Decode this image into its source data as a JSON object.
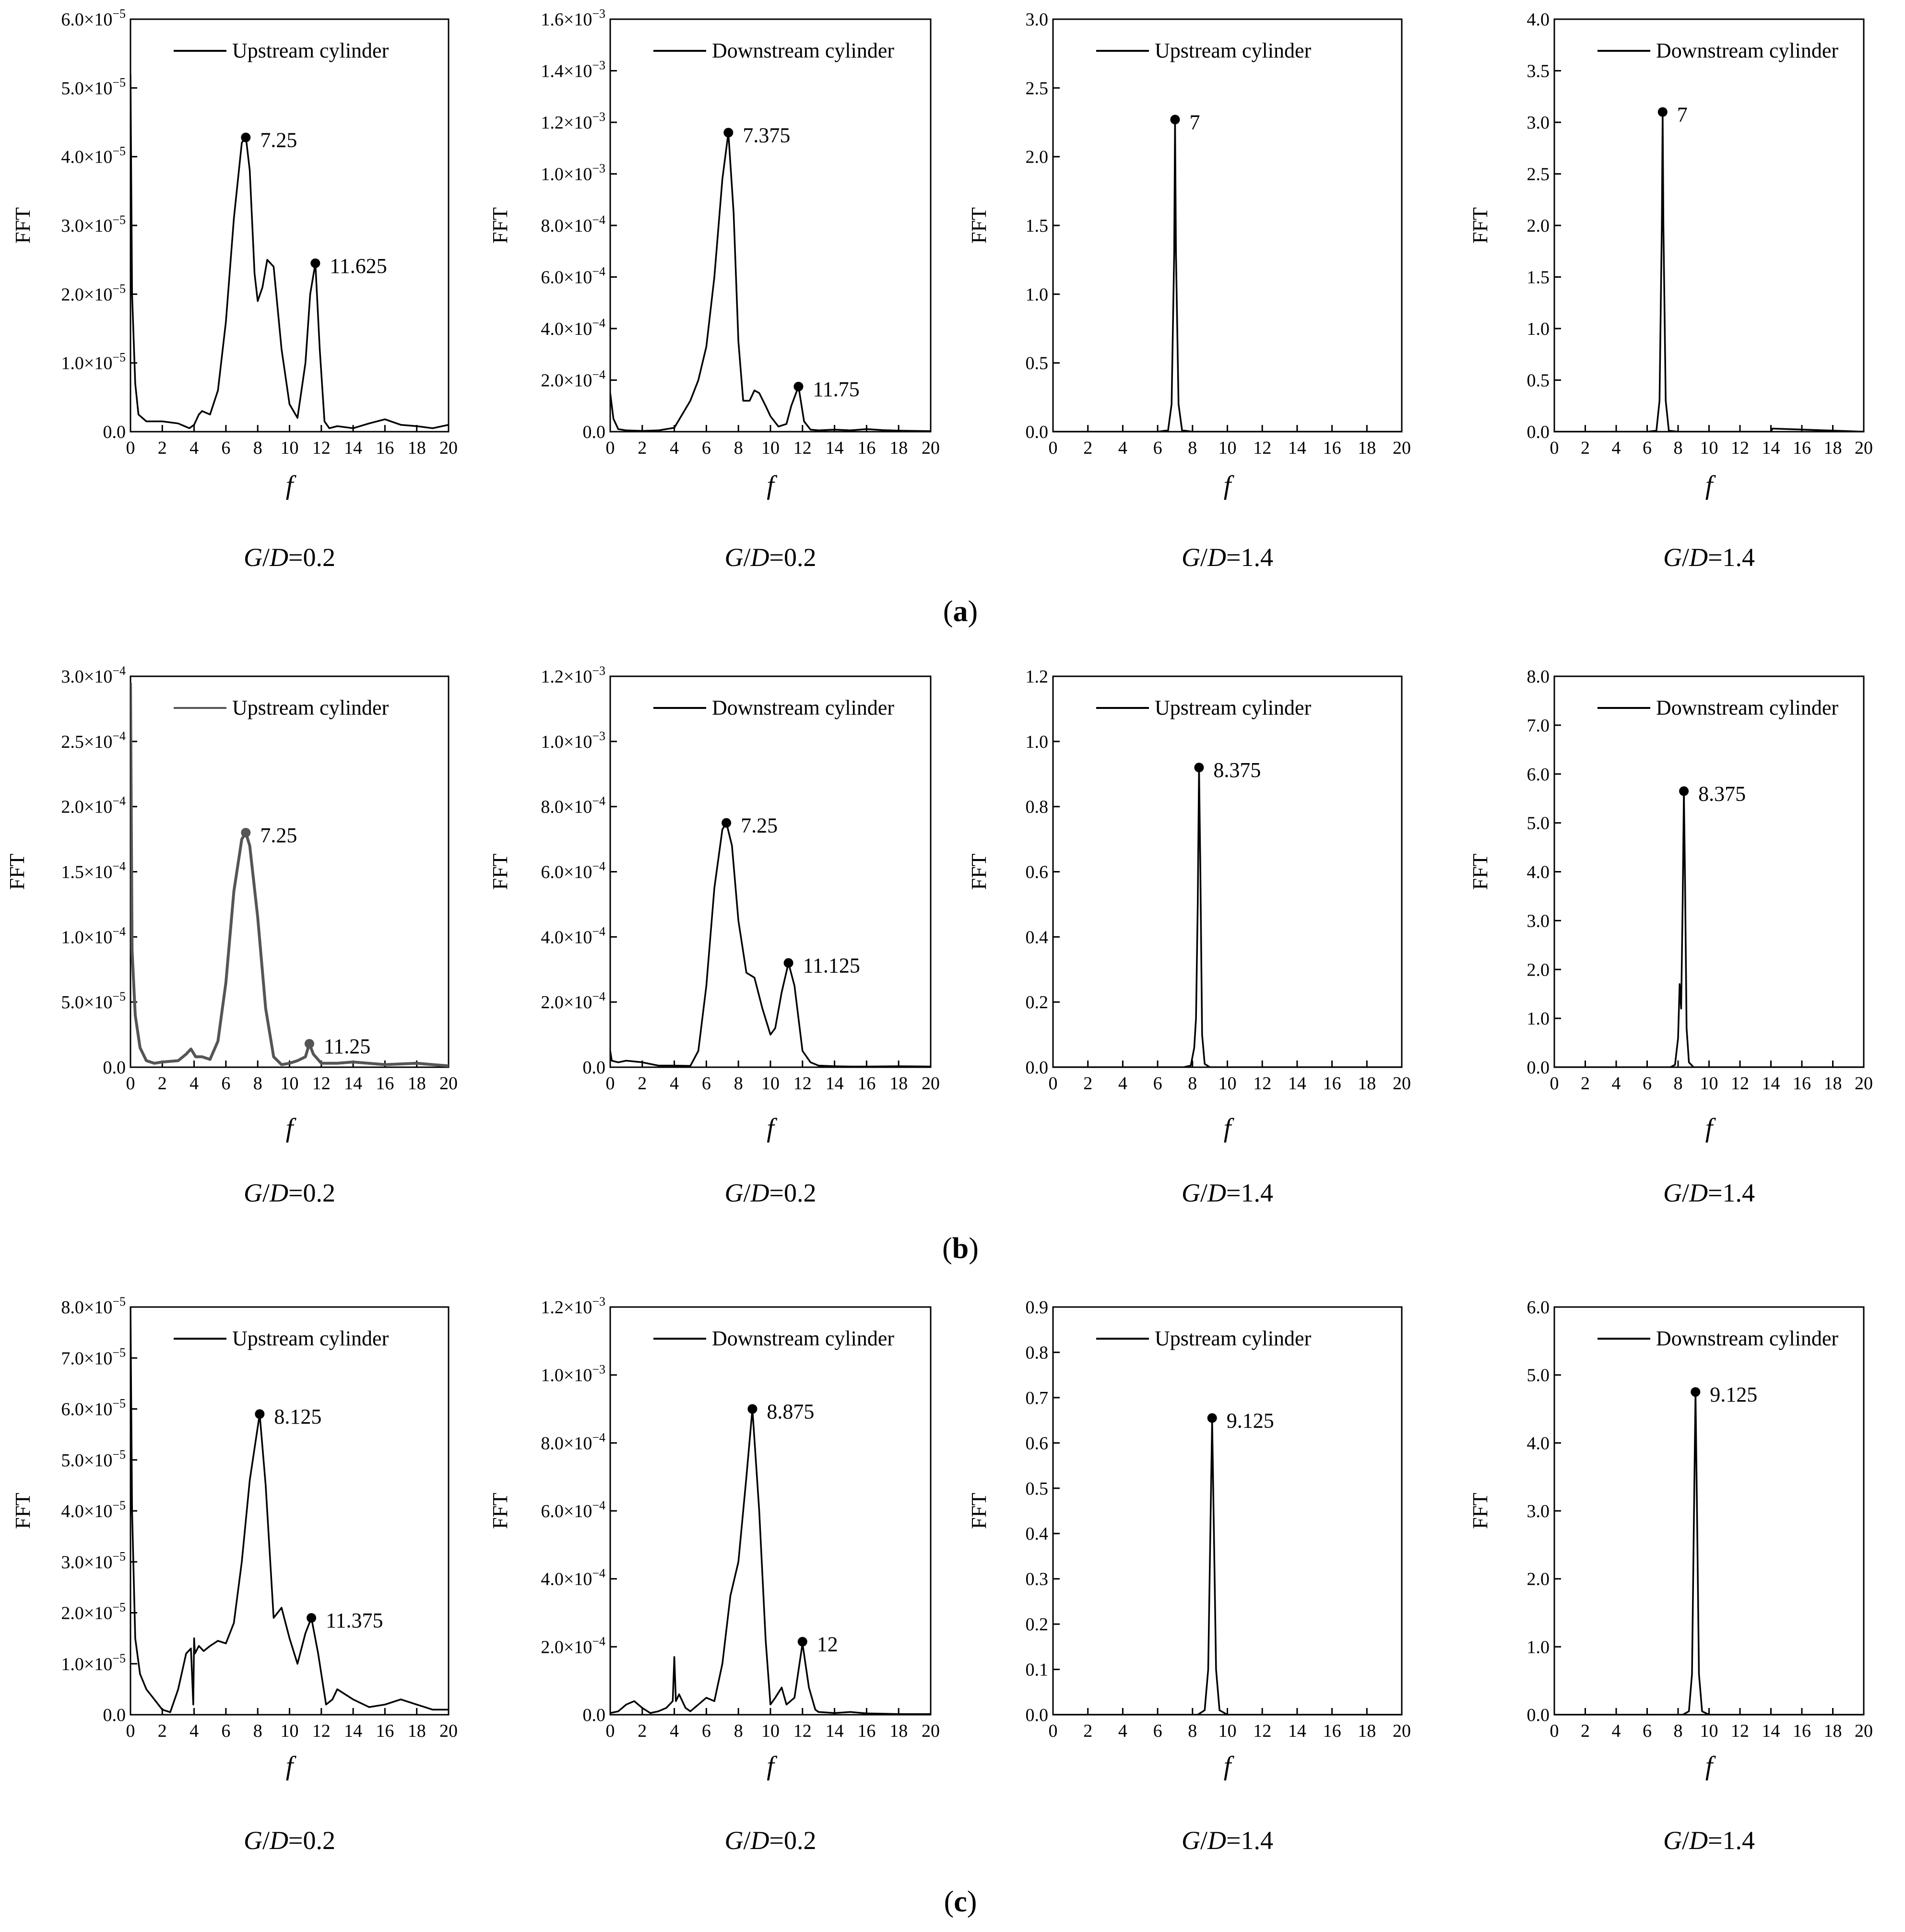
{
  "panel_labels": [
    "(a)",
    "(b)",
    "(c)"
  ],
  "chart_data": [
    {
      "type": "line",
      "title": "",
      "xlabel": "f",
      "ylabel": "FFT",
      "caption": "G/D=0.2",
      "legend": "Upstream cylinder",
      "exp": -5,
      "xlim": [
        0,
        20
      ],
      "ylim": [
        0,
        6e-05
      ],
      "xticks": [
        0,
        2,
        4,
        6,
        8,
        10,
        12,
        14,
        16,
        18,
        20
      ],
      "yticks": [
        "0.0",
        "1.0×10^-5",
        "2.0×10^-5",
        "3.0×10^-5",
        "4.0×10^-5",
        "5.0×10^-5",
        "6.0×10^-5"
      ],
      "x": [
        0,
        0.1,
        0.3,
        0.5,
        1,
        2,
        3,
        3.7,
        4,
        4.3,
        4.5,
        5,
        5.5,
        6,
        6.5,
        7,
        7.25,
        7.5,
        7.8,
        8,
        8.3,
        8.6,
        9,
        9.5,
        10,
        10.5,
        11,
        11.3,
        11.625,
        11.9,
        12.2,
        12.5,
        13,
        14,
        15,
        16,
        17,
        18,
        19,
        20
      ],
      "y": [
        5.2e-05,
        2e-05,
        7e-06,
        2.5e-06,
        1.5e-06,
        1.5e-06,
        1.2e-06,
        5e-07,
        1e-06,
        2.5e-06,
        3e-06,
        2.5e-06,
        6e-06,
        1.6e-05,
        3.1e-05,
        4.2e-05,
        4.3e-05,
        3.8e-05,
        2.3e-05,
        1.9e-05,
        2.1e-05,
        2.5e-05,
        2.4e-05,
        1.2e-05,
        4e-06,
        2e-06,
        1e-05,
        2e-05,
        2.45e-05,
        1.2e-05,
        1.5e-06,
        5e-07,
        8e-07,
        5e-07,
        1.2e-06,
        1.8e-06,
        1e-06,
        8e-07,
        5e-07,
        1e-06
      ],
      "peaks": [
        {
          "x": 7.25,
          "y": 4.28e-05,
          "label": "7.25"
        },
        {
          "x": 11.625,
          "y": 2.45e-05,
          "label": "11.625"
        }
      ]
    },
    {
      "type": "line",
      "title": "",
      "xlabel": "f",
      "ylabel": "FFT",
      "caption": "G/D=0.2",
      "legend": "Downstream cylinder",
      "exp": -3,
      "xlim": [
        0,
        20
      ],
      "ylim": [
        0,
        0.0016
      ],
      "xticks": [
        0,
        2,
        4,
        6,
        8,
        10,
        12,
        14,
        16,
        18,
        20
      ],
      "yticks": [
        "0.0",
        "2.0×10^-4",
        "4.0×10^-4",
        "6.0×10^-4",
        "8.0×10^-4",
        "1.0×10^-3",
        "1.2×10^-3",
        "1.4×10^-3",
        "1.6×10^-3"
      ],
      "x": [
        0,
        0.2,
        0.5,
        1,
        2,
        3,
        4,
        5,
        5.5,
        6,
        6.5,
        7,
        7.375,
        7.7,
        8,
        8.3,
        8.7,
        9,
        9.3,
        9.7,
        10,
        10.5,
        11,
        11.3,
        11.75,
        12.1,
        12.5,
        13,
        14,
        15,
        16,
        17,
        18,
        19,
        20
      ],
      "y": [
        0.00015,
        5e-05,
        1e-05,
        5e-06,
        3e-06,
        5e-06,
        1.5e-05,
        0.00012,
        0.0002,
        0.00033,
        0.0006,
        0.00098,
        0.00116,
        0.00085,
        0.00035,
        0.00012,
        0.00012,
        0.00016,
        0.00015,
        0.0001,
        6e-05,
        2e-05,
        3e-05,
        0.0001,
        0.000175,
        4e-05,
        8e-06,
        5e-06,
        8e-06,
        5e-06,
        1e-05,
        6e-06,
        4e-06,
        3e-06,
        2e-06
      ],
      "peaks": [
        {
          "x": 7.375,
          "y": 0.00116,
          "label": "7.375"
        },
        {
          "x": 11.75,
          "y": 0.000175,
          "label": "11.75"
        }
      ]
    },
    {
      "type": "line",
      "title": "",
      "xlabel": "f",
      "ylabel": "FFT",
      "caption": "G/D=1.4",
      "legend": "Upstream cylinder",
      "exp": 0,
      "xlim": [
        0,
        20
      ],
      "ylim": [
        0,
        3.0
      ],
      "xticks": [
        0,
        2,
        4,
        6,
        8,
        10,
        12,
        14,
        16,
        18,
        20
      ],
      "yticks": [
        "0.0",
        "0.5",
        "1.0",
        "1.5",
        "2.0",
        "2.5",
        "3.0"
      ],
      "x": [
        0,
        6,
        6.6,
        6.8,
        6.95,
        7,
        7.05,
        7.2,
        7.4,
        8,
        20
      ],
      "y": [
        0,
        0,
        0.01,
        0.2,
        1.3,
        2.27,
        1.3,
        0.2,
        0.01,
        0,
        0
      ],
      "peaks": [
        {
          "x": 7,
          "y": 2.27,
          "label": "7"
        }
      ]
    },
    {
      "type": "line",
      "title": "",
      "xlabel": "f",
      "ylabel": "FFT",
      "caption": "G/D=1.4",
      "legend": "Downstream cylinder",
      "exp": 0,
      "xlim": [
        0,
        20
      ],
      "ylim": [
        0,
        4.0
      ],
      "xticks": [
        0,
        2,
        4,
        6,
        8,
        10,
        12,
        14,
        16,
        18,
        20
      ],
      "yticks": [
        "0.0",
        "0.5",
        "1.0",
        "1.5",
        "2.0",
        "2.5",
        "3.0",
        "3.5",
        "4.0"
      ],
      "x": [
        0,
        6,
        6.6,
        6.8,
        6.95,
        7,
        7.05,
        7.2,
        7.4,
        8,
        14,
        14.1,
        20
      ],
      "y": [
        0,
        0,
        0.01,
        0.3,
        2.0,
        3.1,
        2.0,
        0.3,
        0.01,
        0,
        0,
        0.03,
        0
      ],
      "peaks": [
        {
          "x": 7,
          "y": 3.1,
          "label": "7"
        }
      ]
    },
    {
      "type": "line",
      "title": "",
      "xlabel": "f",
      "ylabel": "FFT",
      "caption": "G/D=0.2",
      "legend": "Upstream cylinder",
      "exp": -4,
      "xlim": [
        0,
        20
      ],
      "ylim": [
        0,
        0.0003
      ],
      "xticks": [
        0,
        2,
        4,
        6,
        8,
        10,
        12,
        14,
        16,
        18,
        20
      ],
      "yticks": [
        "0.0",
        "5.0×10^-5",
        "1.0×10^-4",
        "1.5×10^-4",
        "2.0×10^-4",
        "2.5×10^-4",
        "3.0×10^-4"
      ],
      "x": [
        0,
        0.1,
        0.3,
        0.6,
        1,
        1.5,
        2,
        3,
        3.5,
        3.8,
        4.1,
        4.5,
        5,
        5.5,
        6,
        6.5,
        7,
        7.25,
        7.5,
        8,
        8.5,
        9,
        9.5,
        10,
        10.5,
        11,
        11.25,
        11.5,
        12,
        13,
        14,
        16,
        18,
        20
      ],
      "y": [
        0.000295,
        9e-05,
        4e-05,
        1.5e-05,
        5e-06,
        3e-06,
        4e-06,
        5e-06,
        1e-05,
        1.4e-05,
        8e-06,
        8e-06,
        6e-06,
        2e-05,
        6.5e-05,
        0.000135,
        0.000175,
        0.00018,
        0.00017,
        0.000115,
        4.5e-05,
        8e-06,
        2e-06,
        3e-06,
        5e-06,
        8e-06,
        1.8e-05,
        1e-05,
        3e-06,
        3e-06,
        4e-06,
        2e-06,
        3e-06,
        1e-06
      ],
      "peaks": [
        {
          "x": 7.25,
          "y": 0.00018,
          "label": "7.25"
        },
        {
          "x": 11.25,
          "y": 1.8e-05,
          "label": "11.25"
        }
      ]
    },
    {
      "type": "line",
      "title": "",
      "xlabel": "f",
      "ylabel": "FFT",
      "caption": "G/D=0.2",
      "legend": "Downstream cylinder",
      "exp": -3,
      "xlim": [
        0,
        20
      ],
      "ylim": [
        0,
        0.0012
      ],
      "xticks": [
        0,
        2,
        4,
        6,
        8,
        10,
        12,
        14,
        16,
        18,
        20
      ],
      "yticks": [
        "0.0",
        "2.0×10^-4",
        "4.0×10^-4",
        "6.0×10^-4",
        "8.0×10^-4",
        "1.0×10^-3",
        "1.2×10^-3"
      ],
      "x": [
        0,
        0.1,
        0.5,
        1,
        2,
        3,
        4,
        5,
        5.5,
        6,
        6.5,
        7,
        7.25,
        7.6,
        8,
        8.5,
        9,
        9.5,
        10,
        10.3,
        10.7,
        11.125,
        11.5,
        12,
        12.5,
        13,
        14,
        15,
        16,
        18,
        20
      ],
      "y": [
        5e-05,
        2e-05,
        1.5e-05,
        2e-05,
        1.5e-05,
        5e-06,
        5e-06,
        4e-06,
        5e-05,
        0.00025,
        0.00055,
        0.00073,
        0.00075,
        0.00068,
        0.00045,
        0.00029,
        0.000275,
        0.00018,
        0.0001,
        0.00012,
        0.00023,
        0.00032,
        0.00025,
        5e-05,
        1.5e-05,
        5e-06,
        3e-06,
        2e-06,
        2e-06,
        3e-06,
        2e-06
      ],
      "peaks": [
        {
          "x": 7.25,
          "y": 0.00075,
          "label": "7.25"
        },
        {
          "x": 11.125,
          "y": 0.00032,
          "label": "11.125"
        }
      ]
    },
    {
      "type": "line",
      "title": "",
      "xlabel": "f",
      "ylabel": "FFT",
      "caption": "G/D=1.4",
      "legend": "Upstream cylinder",
      "exp": 0,
      "xlim": [
        0,
        20
      ],
      "ylim": [
        0,
        1.2
      ],
      "xticks": [
        0,
        2,
        4,
        6,
        8,
        10,
        12,
        14,
        16,
        18,
        20
      ],
      "yticks": [
        "0.0",
        "0.2",
        "0.4",
        "0.6",
        "0.8",
        "1.0",
        "1.2"
      ],
      "x": [
        0,
        7.5,
        7.9,
        8.1,
        8.2,
        8.3,
        8.375,
        8.45,
        8.55,
        8.7,
        9,
        20
      ],
      "y": [
        0,
        0,
        0.005,
        0.06,
        0.15,
        0.5,
        0.92,
        0.6,
        0.1,
        0.01,
        0,
        0
      ],
      "peaks": [
        {
          "x": 8.375,
          "y": 0.92,
          "label": "8.375"
        }
      ]
    },
    {
      "type": "line",
      "title": "",
      "xlabel": "f",
      "ylabel": "FFT",
      "caption": "G/D=1.4",
      "legend": "Downstream cylinder",
      "exp": 0,
      "xlim": [
        0,
        20
      ],
      "ylim": [
        0,
        8.0
      ],
      "xticks": [
        0,
        2,
        4,
        6,
        8,
        10,
        12,
        14,
        16,
        18,
        20
      ],
      "yticks": [
        "0.0",
        "1.0",
        "2.0",
        "3.0",
        "4.0",
        "5.0",
        "6.0",
        "7.0",
        "8.0"
      ],
      "x": [
        0,
        7.5,
        7.8,
        8.0,
        8.1,
        8.2,
        8.3,
        8.375,
        8.45,
        8.55,
        8.7,
        9,
        20
      ],
      "y": [
        0,
        0,
        0.05,
        0.6,
        1.7,
        1.2,
        3.5,
        5.65,
        3.8,
        0.8,
        0.1,
        0,
        0
      ],
      "peaks": [
        {
          "x": 8.375,
          "y": 5.65,
          "label": "8.375"
        }
      ]
    },
    {
      "type": "line",
      "title": "",
      "xlabel": "f",
      "ylabel": "FFT",
      "caption": "G/D=0.2",
      "legend": "Upstream cylinder",
      "exp": -5,
      "xlim": [
        0,
        20
      ],
      "ylim": [
        0,
        8e-05
      ],
      "xticks": [
        0,
        2,
        4,
        6,
        8,
        10,
        12,
        14,
        16,
        18,
        20
      ],
      "yticks": [
        "0.0",
        "1.0×10^-5",
        "2.0×10^-5",
        "3.0×10^-5",
        "4.0×10^-5",
        "5.0×10^-5",
        "6.0×10^-5",
        "7.0×10^-5",
        "8.0×10^-5"
      ],
      "x": [
        0,
        0.1,
        0.3,
        0.6,
        1,
        1.5,
        2,
        2.5,
        3,
        3.5,
        3.8,
        3.95,
        4,
        4.05,
        4.3,
        4.6,
        5,
        5.5,
        6,
        6.5,
        7,
        7.5,
        8.125,
        8.5,
        9,
        9.5,
        10,
        10.5,
        11,
        11.375,
        11.8,
        12.3,
        12.7,
        13,
        14,
        15,
        16,
        17,
        18,
        19,
        20
      ],
      "y": [
        8e-05,
        4e-05,
        1.5e-05,
        8e-06,
        5e-06,
        3e-06,
        1e-06,
        5e-07,
        5e-06,
        1.2e-05,
        1.3e-05,
        2e-06,
        1.5e-05,
        1.2e-05,
        1.35e-05,
        1.25e-05,
        1.35e-05,
        1.45e-05,
        1.4e-05,
        1.8e-05,
        3e-05,
        4.6e-05,
        5.9e-05,
        4.5e-05,
        1.9e-05,
        2.1e-05,
        1.5e-05,
        1e-05,
        1.6e-05,
        1.9e-05,
        1.2e-05,
        2e-06,
        3e-06,
        5e-06,
        3e-06,
        1.5e-06,
        2e-06,
        3e-06,
        2e-06,
        1e-06,
        1e-06
      ],
      "peaks": [
        {
          "x": 8.125,
          "y": 5.9e-05,
          "label": "8.125"
        },
        {
          "x": 11.375,
          "y": 1.9e-05,
          "label": "11.375"
        }
      ]
    },
    {
      "type": "line",
      "title": "",
      "xlabel": "f",
      "ylabel": "FFT",
      "caption": "G/D=0.2",
      "legend": "Downstream cylinder",
      "exp": -3,
      "xlim": [
        0,
        20
      ],
      "ylim": [
        0,
        0.0012
      ],
      "xticks": [
        0,
        2,
        4,
        6,
        8,
        10,
        12,
        14,
        16,
        18,
        20
      ],
      "yticks": [
        "0.0",
        "2.0×10^-4",
        "4.0×10^-4",
        "6.0×10^-4",
        "8.0×10^-4",
        "1.0×10^-3",
        "1.2×10^-3"
      ],
      "x": [
        0,
        0.5,
        1,
        1.5,
        2,
        2.5,
        3,
        3.5,
        3.9,
        4,
        4.1,
        4.3,
        4.7,
        5,
        5.5,
        6,
        6.5,
        7,
        7.5,
        8,
        8.5,
        8.875,
        9.3,
        9.7,
        10,
        10.3,
        10.7,
        11,
        11.5,
        12,
        12.4,
        12.8,
        13,
        14,
        15,
        16,
        17,
        18,
        20
      ],
      "y": [
        5e-06,
        1e-05,
        3e-05,
        4e-05,
        2e-05,
        5e-06,
        1e-05,
        2e-05,
        4e-05,
        0.00017,
        4e-05,
        6e-05,
        2e-05,
        1e-05,
        3e-05,
        5e-05,
        4e-05,
        0.00015,
        0.00035,
        0.00045,
        0.0007,
        0.0009,
        0.0006,
        0.00022,
        3e-05,
        5e-05,
        8e-05,
        3e-05,
        5e-05,
        0.00021,
        8e-05,
        1.5e-05,
        8e-06,
        5e-06,
        8e-06,
        4e-06,
        3e-06,
        2e-06,
        2e-06
      ],
      "peaks": [
        {
          "x": 8.875,
          "y": 0.0009,
          "label": "8.875"
        },
        {
          "x": 12,
          "y": 0.000215,
          "label": "12"
        }
      ]
    },
    {
      "type": "line",
      "title": "",
      "xlabel": "f",
      "ylabel": "FFT",
      "caption": "G/D=1.4",
      "legend": "Upstream cylinder",
      "exp": 0,
      "xlim": [
        0,
        20
      ],
      "ylim": [
        0,
        0.9
      ],
      "xticks": [
        0,
        2,
        4,
        6,
        8,
        10,
        12,
        14,
        16,
        18,
        20
      ],
      "yticks": [
        "0.0",
        "0.1",
        "0.2",
        "0.3",
        "0.4",
        "0.5",
        "0.6",
        "0.7",
        "0.8",
        "0.9"
      ],
      "x": [
        0,
        8.3,
        8.7,
        8.9,
        9.0,
        9.125,
        9.25,
        9.35,
        9.55,
        10,
        20
      ],
      "y": [
        0,
        0,
        0.01,
        0.1,
        0.35,
        0.65,
        0.35,
        0.1,
        0.01,
        0,
        0
      ],
      "peaks": [
        {
          "x": 9.125,
          "y": 0.655,
          "label": "9.125"
        }
      ]
    },
    {
      "type": "line",
      "title": "",
      "xlabel": "f",
      "ylabel": "FFT",
      "caption": "G/D=1.4",
      "legend": "Downstream cylinder",
      "exp": 0,
      "xlim": [
        0,
        20
      ],
      "ylim": [
        0,
        6.0
      ],
      "xticks": [
        0,
        2,
        4,
        6,
        8,
        10,
        12,
        14,
        16,
        18,
        20
      ],
      "yticks": [
        "0.0",
        "1.0",
        "2.0",
        "3.0",
        "4.0",
        "5.0",
        "6.0"
      ],
      "x": [
        0,
        8.3,
        8.7,
        8.9,
        9.0,
        9.125,
        9.25,
        9.35,
        9.55,
        10,
        20
      ],
      "y": [
        0,
        0,
        0.05,
        0.6,
        2.5,
        4.75,
        2.5,
        0.6,
        0.05,
        0,
        0
      ],
      "peaks": [
        {
          "x": 9.125,
          "y": 4.75,
          "label": "9.125"
        }
      ]
    }
  ]
}
